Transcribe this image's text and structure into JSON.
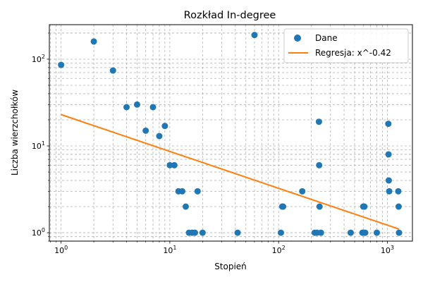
{
  "chart_data": {
    "type": "scatter",
    "title": "Rozkład In-degree",
    "xlabel": "Stopień",
    "ylabel": "Liczba wierzchołków",
    "x_scale": "log",
    "y_scale": "log",
    "xlim": [
      0.78,
      1700
    ],
    "ylim": [
      0.8,
      250
    ],
    "grid": true,
    "legend_position": "top-right",
    "x_ticks": [
      {
        "base": "10",
        "exp": "0",
        "value": 1
      },
      {
        "base": "10",
        "exp": "1",
        "value": 10
      },
      {
        "base": "10",
        "exp": "2",
        "value": 100
      },
      {
        "base": "10",
        "exp": "3",
        "value": 1000
      }
    ],
    "y_ticks": [
      {
        "base": "10",
        "exp": "0",
        "value": 1
      },
      {
        "base": "10",
        "exp": "1",
        "value": 10
      },
      {
        "base": "10",
        "exp": "2",
        "value": 100
      }
    ],
    "series": [
      {
        "name": "Dane",
        "kind": "scatter",
        "color": "#1f77b4",
        "points": [
          [
            1,
            86
          ],
          [
            2,
            160
          ],
          [
            3,
            74
          ],
          [
            4,
            28
          ],
          [
            5,
            30
          ],
          [
            6,
            15
          ],
          [
            7,
            28
          ],
          [
            8,
            13
          ],
          [
            9,
            17
          ],
          [
            10,
            6
          ],
          [
            11,
            6
          ],
          [
            12,
            3
          ],
          [
            13,
            3
          ],
          [
            14,
            2
          ],
          [
            15,
            1
          ],
          [
            16,
            1
          ],
          [
            17,
            1
          ],
          [
            18,
            3
          ],
          [
            20,
            1
          ],
          [
            42,
            1
          ],
          [
            60,
            190
          ],
          [
            105,
            1
          ],
          [
            108,
            2
          ],
          [
            110,
            2
          ],
          [
            165,
            3
          ],
          [
            215,
            1
          ],
          [
            225,
            1
          ],
          [
            235,
            19
          ],
          [
            236,
            6
          ],
          [
            238,
            2
          ],
          [
            245,
            1
          ],
          [
            460,
            1
          ],
          [
            590,
            1
          ],
          [
            600,
            2
          ],
          [
            605,
            1
          ],
          [
            615,
            2
          ],
          [
            625,
            1
          ],
          [
            800,
            1
          ],
          [
            1020,
            18
          ],
          [
            1025,
            8
          ],
          [
            1030,
            4
          ],
          [
            1040,
            3
          ],
          [
            1260,
            3
          ],
          [
            1270,
            2
          ],
          [
            1280,
            1
          ]
        ]
      },
      {
        "name": "Regresja: x^-0.42",
        "kind": "line",
        "color": "#ff7f0e",
        "x": [
          1,
          1280
        ],
        "y": [
          23,
          1.1
        ]
      }
    ]
  }
}
